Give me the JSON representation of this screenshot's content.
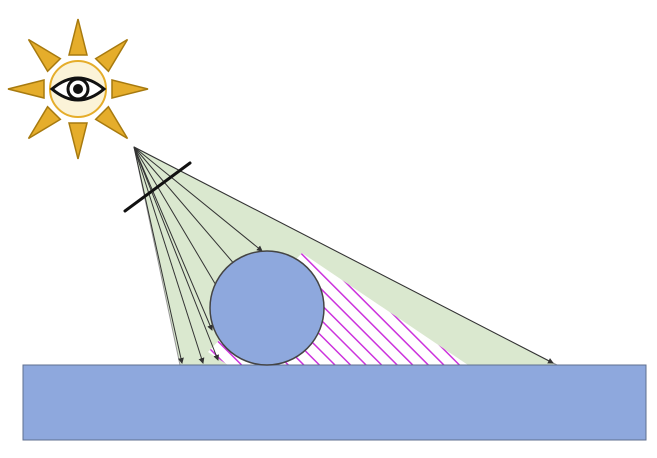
{
  "diagram": {
    "light_source_icon": "sun-with-eye-icon",
    "ray_count": 8,
    "colors": {
      "background": "#ffffff",
      "ground_fill": "#8ea8dd",
      "sphere_fill": "#8ea8dd",
      "light_beam_fill": "#dae8cf",
      "shadow_hatch": "#cc33dd",
      "outline": "#555555",
      "ray_line": "#333333",
      "sun_ray_fill": "#e5ad2b",
      "sun_ray_edge": "#a77a0f",
      "sun_core": "#fbf3d8"
    }
  }
}
